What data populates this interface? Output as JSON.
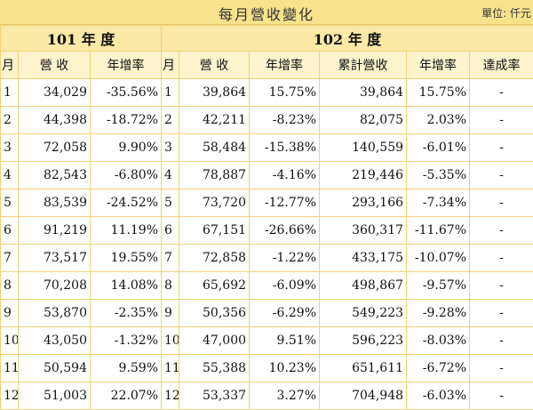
{
  "title": "每月營收變化",
  "unit": "單位: 仟元",
  "year_101": "101 年 度",
  "year_102": "102 年 度",
  "columns": {
    "month": "月",
    "revenue": "營 收",
    "yoy": "年增率",
    "cumulative_revenue": "累計營收",
    "achievement": "達成率"
  },
  "rows": [
    {
      "m101": "1",
      "rev101": "34,029",
      "yoy101": "-35.56%",
      "m102": "1",
      "rev102": "39,864",
      "yoy102": "15.75%",
      "cum102": "39,864",
      "cumyoy102": "15.75%",
      "ach": "-"
    },
    {
      "m101": "2",
      "rev101": "44,398",
      "yoy101": "-18.72%",
      "m102": "2",
      "rev102": "42,211",
      "yoy102": "-8.23%",
      "cum102": "82,075",
      "cumyoy102": "2.03%",
      "ach": "-"
    },
    {
      "m101": "3",
      "rev101": "72,058",
      "yoy101": "9.90%",
      "m102": "3",
      "rev102": "58,484",
      "yoy102": "-15.38%",
      "cum102": "140,559",
      "cumyoy102": "-6.01%",
      "ach": "-"
    },
    {
      "m101": "4",
      "rev101": "82,543",
      "yoy101": "-6.80%",
      "m102": "4",
      "rev102": "78,887",
      "yoy102": "-4.16%",
      "cum102": "219,446",
      "cumyoy102": "-5.35%",
      "ach": "-"
    },
    {
      "m101": "5",
      "rev101": "83,539",
      "yoy101": "-24.52%",
      "m102": "5",
      "rev102": "73,720",
      "yoy102": "-12.77%",
      "cum102": "293,166",
      "cumyoy102": "-7.34%",
      "ach": "-"
    },
    {
      "m101": "6",
      "rev101": "91,219",
      "yoy101": "11.19%",
      "m102": "6",
      "rev102": "67,151",
      "yoy102": "-26.66%",
      "cum102": "360,317",
      "cumyoy102": "-11.67%",
      "ach": "-"
    },
    {
      "m101": "7",
      "rev101": "73,517",
      "yoy101": "19.55%",
      "m102": "7",
      "rev102": "72,858",
      "yoy102": "-1.22%",
      "cum102": "433,175",
      "cumyoy102": "-10.07%",
      "ach": "-"
    },
    {
      "m101": "8",
      "rev101": "70,208",
      "yoy101": "14.08%",
      "m102": "8",
      "rev102": "65,692",
      "yoy102": "-6.09%",
      "cum102": "498,867",
      "cumyoy102": "-9.57%",
      "ach": "-"
    },
    {
      "m101": "9",
      "rev101": "53,870",
      "yoy101": "-2.35%",
      "m102": "9",
      "rev102": "50,356",
      "yoy102": "-6.29%",
      "cum102": "549,223",
      "cumyoy102": "-9.28%",
      "ach": "-"
    },
    {
      "m101": "10",
      "rev101": "43,050",
      "yoy101": "-1.32%",
      "m102": "10",
      "rev102": "47,000",
      "yoy102": "9.51%",
      "cum102": "596,223",
      "cumyoy102": "-8.03%",
      "ach": "-"
    },
    {
      "m101": "11",
      "rev101": "50,594",
      "yoy101": "9.59%",
      "m102": "11",
      "rev102": "55,388",
      "yoy102": "10.23%",
      "cum102": "651,611",
      "cumyoy102": "-6.72%",
      "ach": "-"
    },
    {
      "m101": "12",
      "rev101": "51,003",
      "yoy101": "22.07%",
      "m102": "12",
      "rev102": "53,337",
      "yoy102": "3.27%",
      "cum102": "704,948",
      "cumyoy102": "-6.03%",
      "ach": "-"
    }
  ],
  "colors": {
    "title_bg": "#f7e38c",
    "header_bg": "#fbe9a6",
    "subheader_bg": "#fdf3cc",
    "border": "#f0d277"
  }
}
